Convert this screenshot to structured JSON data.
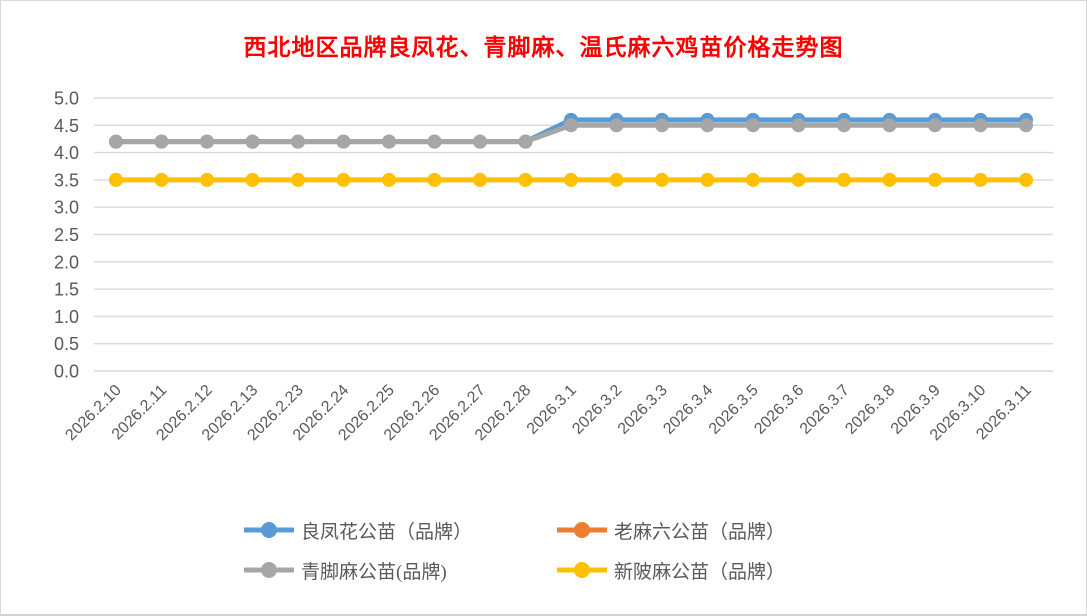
{
  "chart_data": {
    "type": "line",
    "title": "西北地区品牌良凤花、青脚麻、温氏麻六鸡苗价格走势图",
    "categories": [
      "2026.2.10",
      "2026.2.11",
      "2026.2.12",
      "2026.2.13",
      "2026.2.23",
      "2026.2.24",
      "2026.2.25",
      "2026.2.26",
      "2026.2.27",
      "2026.2.28",
      "2026.3.1",
      "2026.3.2",
      "2026.3.3",
      "2026.3.4",
      "2026.3.5",
      "2026.3.6",
      "2026.3.7",
      "2026.3.8",
      "2026.3.9",
      "2026.3.10",
      "2026.3.11"
    ],
    "series": [
      {
        "name": "良凤花公苗（品牌）",
        "color": "#5B9BD5",
        "values": [
          4.2,
          4.2,
          4.2,
          4.2,
          4.2,
          4.2,
          4.2,
          4.2,
          4.2,
          4.2,
          4.6,
          4.6,
          4.6,
          4.6,
          4.6,
          4.6,
          4.6,
          4.6,
          4.6,
          4.6,
          4.6
        ]
      },
      {
        "name": "老麻六公苗（品牌）",
        "color": "#ED7D31",
        "values": [],
        "visible": false
      },
      {
        "name": "青脚麻公苗(品牌)",
        "color": "#A6A6A6",
        "values": [
          4.2,
          4.2,
          4.2,
          4.2,
          4.2,
          4.2,
          4.2,
          4.2,
          4.2,
          4.2,
          4.5,
          4.5,
          4.5,
          4.5,
          4.5,
          4.5,
          4.5,
          4.5,
          4.5,
          4.5,
          4.5
        ]
      },
      {
        "name": "新陂麻公苗（品牌）",
        "color": "#FFC000",
        "values": [
          3.5,
          3.5,
          3.5,
          3.5,
          3.5,
          3.5,
          3.5,
          3.5,
          3.5,
          3.5,
          3.5,
          3.5,
          3.5,
          3.5,
          3.5,
          3.5,
          3.5,
          3.5,
          3.5,
          3.5,
          3.5
        ]
      }
    ],
    "xlabel": "",
    "ylabel": "",
    "ylim": [
      0,
      5
    ],
    "ytick_step": 0.5,
    "y_tick_labels": [
      "5.0",
      "4.5",
      "4.0",
      "3.5",
      "3.0",
      "2.5",
      "2.0",
      "1.5",
      "1.0",
      "0.5",
      "0.0"
    ],
    "grid": true,
    "legend_position": "bottom"
  },
  "colors": {
    "title": "#FF0000",
    "gridline": "#D9D9D9",
    "axis_label": "#595959",
    "legend_text": "#595959",
    "background": "#FFFFFF",
    "border": "#D9D9D9"
  }
}
